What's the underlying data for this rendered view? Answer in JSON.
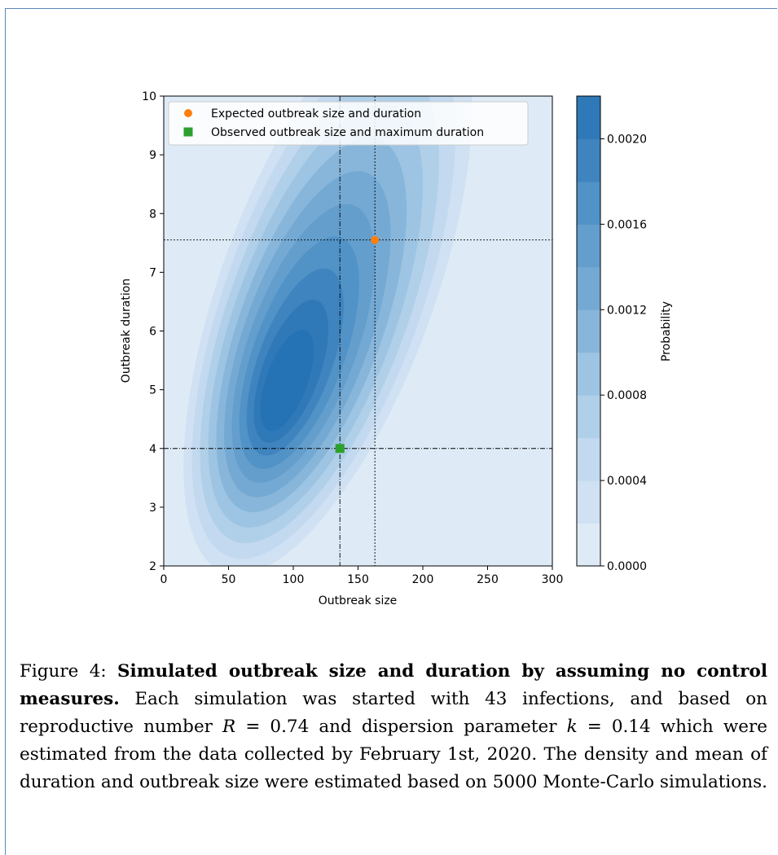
{
  "chart_data": {
    "type": "contour",
    "xlabel": "Outbreak size",
    "ylabel": "Outbreak duration",
    "xlim": [
      0,
      300
    ],
    "ylim": [
      2,
      10
    ],
    "xticks": [
      "0",
      "50",
      "100",
      "150",
      "200",
      "250",
      "300"
    ],
    "yticks": [
      "2",
      "3",
      "4",
      "5",
      "6",
      "7",
      "8",
      "9",
      "10"
    ],
    "colorbar": {
      "label": "Probability",
      "range": [
        0,
        0.0022
      ],
      "ticks": [
        "0.0000",
        "0.0004",
        "0.0008",
        "0.0012",
        "0.0016",
        "0.0020"
      ],
      "levels": 11
    },
    "density_peak": {
      "x": 92,
      "y": 5.0
    },
    "expected": {
      "label": "Expected outbreak size and duration",
      "x": 163,
      "y": 7.55,
      "color": "#ff7f0e"
    },
    "observed": {
      "label": "Observed outbreak size and maximum duration",
      "x": 136,
      "y": 4.0,
      "color": "#2ca02c"
    },
    "grid": false,
    "legend": "top-left"
  },
  "caption": {
    "prefix": "Figure 4: ",
    "bold": "Simulated outbreak size and duration by assuming no control measures.",
    "text1": " Each simulation was started with 43 infections, and based on reproductive number ",
    "r_sym": "R",
    "r_val": " = 0.74 and dispersion parameter ",
    "k_sym": "k",
    "k_val": " = 0.14 which were estimated from the data collected by February 1st, 2020. The density and mean of duration and outbreak size were estimated based on 5000 Monte-Carlo simulations."
  }
}
